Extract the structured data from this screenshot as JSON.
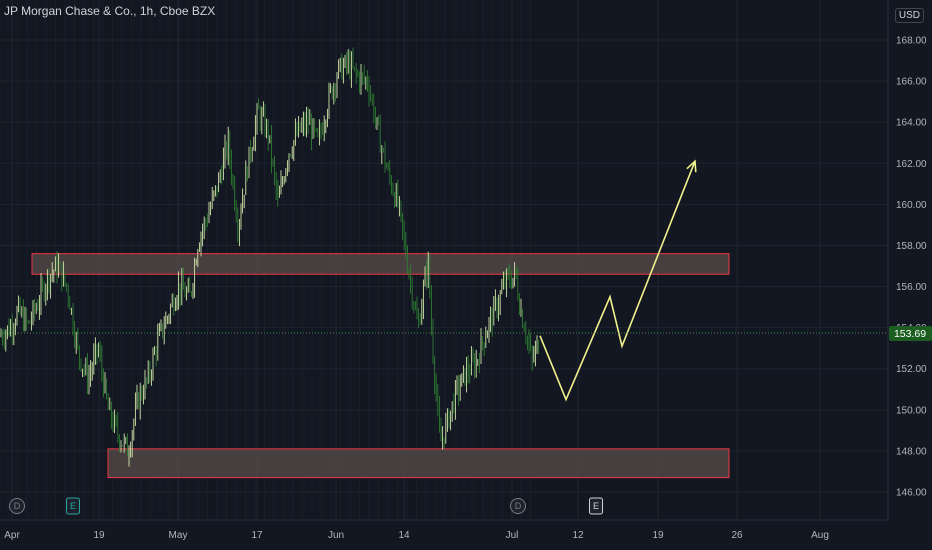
{
  "header": {
    "title": "JP Morgan Chase & Co., 1h, Cboe BZX",
    "currency": "USD"
  },
  "chart_data": {
    "type": "candlestick",
    "symbol": "JP Morgan Chase & Co.",
    "interval": "1h",
    "exchange": "Cboe BZX",
    "currency": "USD",
    "last_price": 153.69,
    "y_ticks": [
      146,
      148,
      150,
      152,
      154,
      156,
      158,
      160,
      162,
      164,
      166,
      168
    ],
    "y_tick_labels": [
      "146.00",
      "148.00",
      "150.00",
      "152.00",
      "154.00",
      "156.00",
      "158.00",
      "160.00",
      "162.00",
      "164.00",
      "166.00",
      "168.00"
    ],
    "ylim": [
      145.2,
      169.6
    ],
    "x_ticks": [
      "Apr",
      "19",
      "May",
      "17",
      "Jun",
      "14",
      "Jul",
      "12",
      "19",
      "26",
      "Aug"
    ],
    "grid": true,
    "price_path": [
      [
        0,
        153.6
      ],
      [
        10,
        154.0
      ],
      [
        18,
        154.8
      ],
      [
        28,
        154.1
      ],
      [
        38,
        155.2
      ],
      [
        48,
        156.5
      ],
      [
        58,
        157.0
      ],
      [
        68,
        155.8
      ],
      [
        78,
        152.8
      ],
      [
        88,
        151.5
      ],
      [
        98,
        153.0
      ],
      [
        108,
        150.0
      ],
      [
        118,
        148.8
      ],
      [
        128,
        148.0
      ],
      [
        138,
        150.5
      ],
      [
        148,
        151.5
      ],
      [
        158,
        153.4
      ],
      [
        168,
        154.6
      ],
      [
        178,
        156.0
      ],
      [
        190,
        155.5
      ],
      [
        198,
        158.2
      ],
      [
        208,
        159.5
      ],
      [
        218,
        161.0
      ],
      [
        228,
        163.0
      ],
      [
        238,
        159.0
      ],
      [
        248,
        162.0
      ],
      [
        258,
        164.5
      ],
      [
        268,
        163.5
      ],
      [
        278,
        160.0
      ],
      [
        288,
        162.5
      ],
      [
        298,
        163.5
      ],
      [
        308,
        164.0
      ],
      [
        318,
        163.0
      ],
      [
        328,
        165.0
      ],
      [
        338,
        166.5
      ],
      [
        348,
        166.8
      ],
      [
        358,
        166.2
      ],
      [
        368,
        166.0
      ],
      [
        378,
        163.5
      ],
      [
        388,
        161.5
      ],
      [
        398,
        160.0
      ],
      [
        408,
        157.0
      ],
      [
        418,
        154.0
      ],
      [
        428,
        157.3
      ],
      [
        432,
        153.5
      ],
      [
        440,
        148.3
      ],
      [
        446,
        149.2
      ],
      [
        456,
        150.8
      ],
      [
        466,
        151.8
      ],
      [
        476,
        152.3
      ],
      [
        486,
        153.8
      ],
      [
        496,
        155.0
      ],
      [
        506,
        156.3
      ],
      [
        516,
        156.5
      ],
      [
        520,
        155.0
      ],
      [
        526,
        153.8
      ],
      [
        532,
        152.3
      ],
      [
        540,
        153.5
      ]
    ],
    "zones": [
      {
        "type": "resistance",
        "y_low": 156.6,
        "y_high": 157.6,
        "x_start": "Apr",
        "x_end": "26"
      },
      {
        "type": "support",
        "y_low": 146.7,
        "y_high": 148.1,
        "x_start": "19",
        "x_end": "26"
      }
    ],
    "projection": [
      [
        540,
        153.6
      ],
      [
        566,
        150.5
      ],
      [
        610,
        155.5
      ],
      [
        622,
        153.1
      ],
      [
        695,
        162.1
      ]
    ],
    "event_badges": [
      {
        "label": "D",
        "color": "#787b86"
      },
      {
        "label": "E",
        "color": "#26a69a"
      },
      {
        "label": "D",
        "color": "#787b86"
      },
      {
        "label": "E",
        "color": "#d1d4dc"
      }
    ],
    "colors": {
      "up": "#cfe8a9",
      "down": "#2e7d32",
      "zone_border": "#f23645",
      "zone_fill": "#5a4d4a",
      "projection": "#f2f28c",
      "price_tag": "#1b5e20",
      "background": "#131722",
      "grid": "#1f2430"
    }
  }
}
